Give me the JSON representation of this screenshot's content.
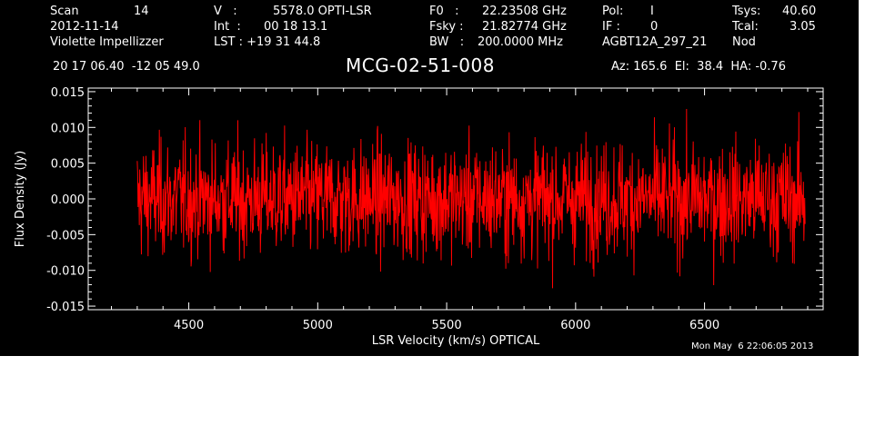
{
  "header": {
    "scan_label": "Scan",
    "scan_value": "14",
    "date": "2012-11-14",
    "observer": "Violette Impellizzer",
    "v_label": "V   :",
    "v_value": "5578.0 OPTI-LSR",
    "int_label": "Int  :",
    "int_value": "00 18 13.1",
    "lst_label": "LST : +19 31 44.8",
    "f0_label": "F0   :",
    "f0_value": "22.23508 GHz",
    "fsky_label": "Fsky :",
    "fsky_value": "21.82774 GHz",
    "bw_label": "BW   :",
    "bw_value": "200.0000 MHz",
    "pol_label": "Pol:",
    "pol_value": "I",
    "if_label": "IF :",
    "if_value": "0",
    "project": "AGBT12A_297_21",
    "tsys_label": "Tsys:",
    "tsys_value": "40.60",
    "tcal_label": "Tcal:",
    "tcal_value": "3.05",
    "nod": "Nod",
    "coords": "20 17 06.40  -12 05 49.0",
    "source": "MCG-02-51-008",
    "pointing": "Az: 165.6  El:  38.4  HA: -0.76",
    "timestamp": "Mon May  6 22:06:05 2013"
  },
  "chart_data": {
    "type": "line",
    "title": "MCG-02-51-008",
    "xlabel": "LSR Velocity (km/s) OPTICAL",
    "ylabel": "Flux Density (Jy)",
    "xlim": [
      4110,
      6960
    ],
    "ylim": [
      -0.0155,
      0.0155
    ],
    "x_ticks": [
      "4500",
      "5000",
      "5500",
      "6000",
      "6500"
    ],
    "x_tick_values": [
      4500,
      5000,
      5500,
      6000,
      6500
    ],
    "y_ticks": [
      "-0.015",
      "-0.010",
      "-0.005",
      "0.000",
      "0.005",
      "0.010",
      "0.015"
    ],
    "y_tick_values": [
      -0.015,
      -0.01,
      -0.005,
      0.0,
      0.005,
      0.01,
      0.015
    ],
    "series": [
      {
        "color": "#ff0000",
        "x_range": [
          4300,
          6890
        ],
        "mean": 0.0,
        "rms": 0.0042,
        "min": -0.0125,
        "max": 0.0145
      }
    ],
    "grid": false,
    "legend": "none"
  }
}
